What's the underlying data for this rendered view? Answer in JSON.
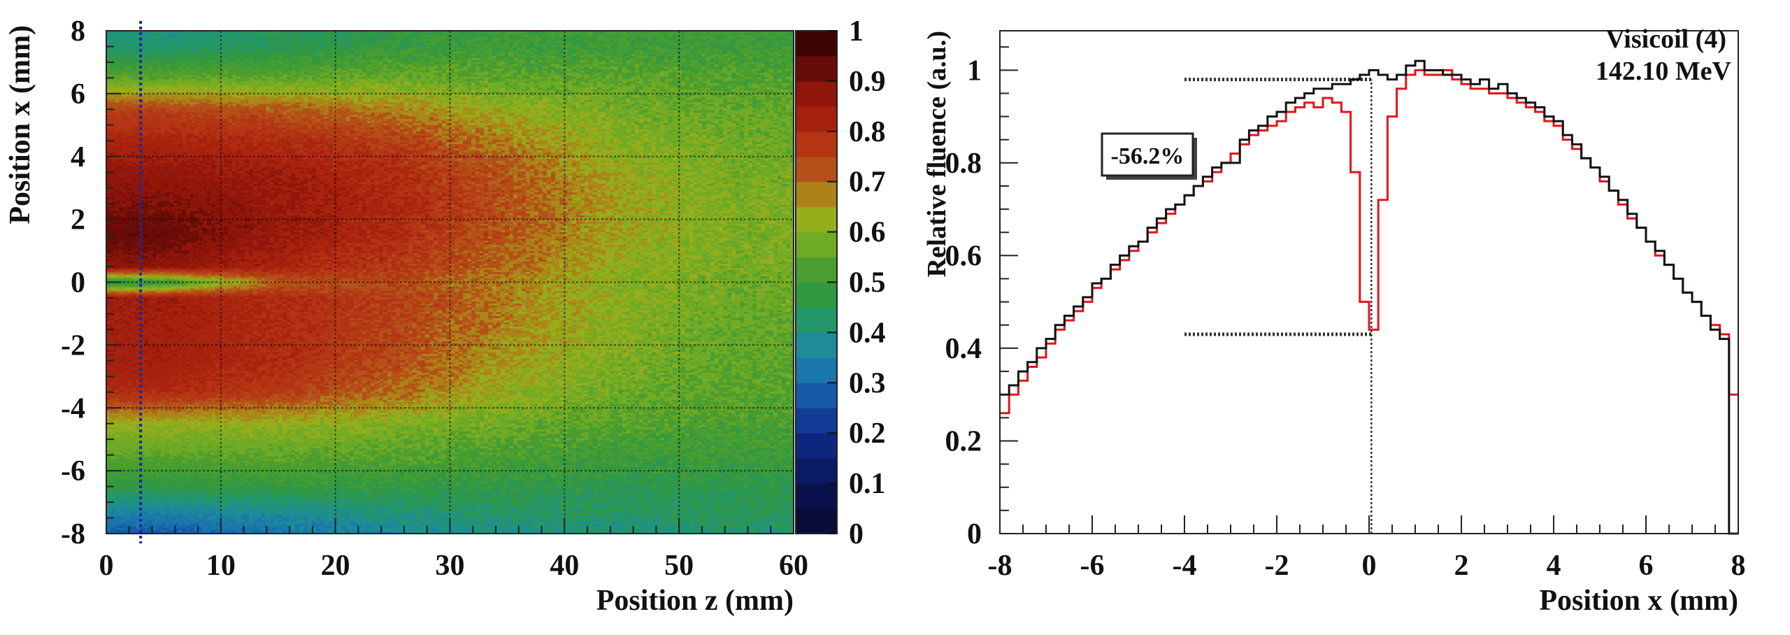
{
  "chart_data": [
    {
      "type": "heatmap",
      "xlabel": "Position z (mm)",
      "ylabel": "Position x (mm)",
      "xlim": [
        0,
        60
      ],
      "ylim": [
        -8,
        8
      ],
      "xticks": [
        "0",
        "10",
        "20",
        "30",
        "40",
        "50",
        "60"
      ],
      "yticks": [
        "-8",
        "-6",
        "-4",
        "-2",
        "0",
        "2",
        "4",
        "6",
        "8"
      ],
      "grid": true,
      "colorbar": {
        "range": [
          0,
          1
        ],
        "ticks": [
          "0",
          "0.1",
          "0.2",
          "0.3",
          "0.4",
          "0.5",
          "0.6",
          "0.7",
          "0.8",
          "0.9",
          "1"
        ],
        "stops": [
          [
            0,
            "#0b0b2e"
          ],
          [
            0.1,
            "#0a1556"
          ],
          [
            0.2,
            "#0e2d8c"
          ],
          [
            0.3,
            "#1a68b0"
          ],
          [
            0.35,
            "#1c84a8"
          ],
          [
            0.4,
            "#1e9488"
          ],
          [
            0.45,
            "#2a9850"
          ],
          [
            0.5,
            "#3a9a34"
          ],
          [
            0.55,
            "#5aa22a"
          ],
          [
            0.6,
            "#86b420"
          ],
          [
            0.65,
            "#a8a818"
          ],
          [
            0.7,
            "#b06018"
          ],
          [
            0.75,
            "#b84018"
          ],
          [
            0.8,
            "#b02a10"
          ],
          [
            0.85,
            "#a01c0c"
          ],
          [
            0.9,
            "#801008"
          ],
          [
            0.95,
            "#500806"
          ],
          [
            1,
            "#2a0404"
          ]
        ]
      },
      "z_centers": [
        0,
        5,
        15,
        25,
        35,
        45,
        55,
        60
      ],
      "x_centers": [
        8,
        7.5,
        6.5,
        5.5,
        4.5,
        3.5,
        2.5,
        1.5,
        0.5,
        0,
        -0.5,
        -1.5,
        -2.5,
        -3.5,
        -4.5,
        -5.5,
        -6.5,
        -7.5,
        -8
      ],
      "values": [
        [
          0.4,
          0.4,
          0.44,
          0.47,
          0.5,
          0.5,
          0.5,
          0.5
        ],
        [
          0.42,
          0.42,
          0.45,
          0.48,
          0.5,
          0.5,
          0.5,
          0.5
        ],
        [
          0.55,
          0.55,
          0.55,
          0.57,
          0.55,
          0.55,
          0.53,
          0.53
        ],
        [
          0.75,
          0.75,
          0.72,
          0.68,
          0.62,
          0.58,
          0.56,
          0.56
        ],
        [
          0.82,
          0.82,
          0.8,
          0.76,
          0.68,
          0.6,
          0.57,
          0.57
        ],
        [
          0.87,
          0.87,
          0.85,
          0.8,
          0.72,
          0.63,
          0.58,
          0.58
        ],
        [
          0.9,
          0.9,
          0.86,
          0.81,
          0.73,
          0.64,
          0.59,
          0.59
        ],
        [
          0.93,
          0.93,
          0.86,
          0.8,
          0.72,
          0.63,
          0.59,
          0.59
        ],
        [
          0.88,
          0.88,
          0.82,
          0.77,
          0.7,
          0.62,
          0.58,
          0.58
        ],
        [
          0.45,
          0.48,
          0.72,
          0.74,
          0.68,
          0.6,
          0.57,
          0.57
        ],
        [
          0.85,
          0.85,
          0.8,
          0.76,
          0.68,
          0.61,
          0.57,
          0.57
        ],
        [
          0.84,
          0.84,
          0.8,
          0.75,
          0.67,
          0.6,
          0.56,
          0.56
        ],
        [
          0.84,
          0.84,
          0.8,
          0.74,
          0.65,
          0.59,
          0.55,
          0.55
        ],
        [
          0.8,
          0.8,
          0.76,
          0.7,
          0.62,
          0.57,
          0.54,
          0.54
        ],
        [
          0.62,
          0.62,
          0.62,
          0.6,
          0.57,
          0.54,
          0.52,
          0.52
        ],
        [
          0.55,
          0.55,
          0.55,
          0.54,
          0.52,
          0.5,
          0.5,
          0.5
        ],
        [
          0.47,
          0.47,
          0.48,
          0.48,
          0.47,
          0.46,
          0.46,
          0.46
        ],
        [
          0.33,
          0.33,
          0.36,
          0.4,
          0.42,
          0.43,
          0.44,
          0.44
        ],
        [
          0.28,
          0.28,
          0.32,
          0.37,
          0.4,
          0.41,
          0.42,
          0.42
        ]
      ],
      "marker_line": {
        "z": 3,
        "color": "#1a2a9a"
      }
    },
    {
      "type": "line",
      "xlabel": "Position x (mm)",
      "ylabel": "Relative fluence (a.u.)",
      "xlim": [
        -8,
        8
      ],
      "ylim": [
        0,
        1.085
      ],
      "xticks": [
        "-8",
        "-6",
        "-4",
        "-2",
        "0",
        "2",
        "4",
        "6",
        "8"
      ],
      "yticks": [
        "0",
        "0.2",
        "0.4",
        "0.6",
        "0.8",
        "1"
      ],
      "grid": false,
      "title_lines": [
        "Visicoil (4)",
        "142.10 MeV"
      ],
      "annotation": {
        "text": "-56.2%",
        "color": "#e0141c"
      },
      "bin_width": 0.2,
      "x_bin_centers_start": -7.9,
      "series": [
        {
          "color": "#111111",
          "values": [
            0.3,
            0.32,
            0.35,
            0.37,
            0.4,
            0.42,
            0.45,
            0.47,
            0.49,
            0.51,
            0.54,
            0.55,
            0.58,
            0.6,
            0.62,
            0.63,
            0.66,
            0.68,
            0.7,
            0.71,
            0.73,
            0.75,
            0.77,
            0.79,
            0.8,
            0.8,
            0.85,
            0.87,
            0.88,
            0.9,
            0.91,
            0.93,
            0.94,
            0.95,
            0.96,
            0.96,
            0.97,
            0.97,
            0.98,
            0.99,
            1.0,
            0.99,
            0.98,
            0.99,
            1.01,
            1.02,
            1.0,
            1.0,
            0.99,
            0.99,
            0.98,
            0.97,
            0.98,
            0.96,
            0.97,
            0.95,
            0.94,
            0.93,
            0.92,
            0.9,
            0.89,
            0.86,
            0.84,
            0.81,
            0.79,
            0.77,
            0.74,
            0.72,
            0.69,
            0.66,
            0.63,
            0.61,
            0.58,
            0.55,
            0.52,
            0.5,
            0.47,
            0.44,
            0.42,
            0.0
          ]
        },
        {
          "color": "#e0141c",
          "values": [
            0.26,
            0.3,
            0.33,
            0.36,
            0.38,
            0.41,
            0.44,
            0.46,
            0.48,
            0.5,
            0.53,
            0.55,
            0.57,
            0.59,
            0.61,
            0.63,
            0.65,
            0.67,
            0.69,
            0.71,
            0.73,
            0.75,
            0.76,
            0.78,
            0.8,
            0.82,
            0.84,
            0.86,
            0.87,
            0.88,
            0.89,
            0.91,
            0.92,
            0.93,
            0.92,
            0.94,
            0.93,
            0.91,
            0.78,
            0.5,
            0.44,
            0.72,
            0.9,
            0.96,
            0.99,
            1.0,
            0.99,
            0.99,
            1.0,
            0.98,
            0.97,
            0.96,
            0.96,
            0.95,
            0.95,
            0.94,
            0.93,
            0.92,
            0.91,
            0.89,
            0.88,
            0.85,
            0.83,
            0.81,
            0.79,
            0.76,
            0.74,
            0.71,
            0.68,
            0.66,
            0.63,
            0.6,
            0.58,
            0.55,
            0.52,
            0.5,
            0.47,
            0.45,
            0.43,
            0.3
          ]
        }
      ],
      "reference_lines": [
        {
          "orientation": "horizontal",
          "y": 0.98,
          "x_from": -4,
          "x_to": 0.05
        },
        {
          "orientation": "horizontal",
          "y": 0.43,
          "x_from": -4,
          "x_to": 0.05
        },
        {
          "orientation": "vertical",
          "x": 0.05,
          "y_from": 0,
          "y_to": 0.98
        }
      ]
    }
  ]
}
